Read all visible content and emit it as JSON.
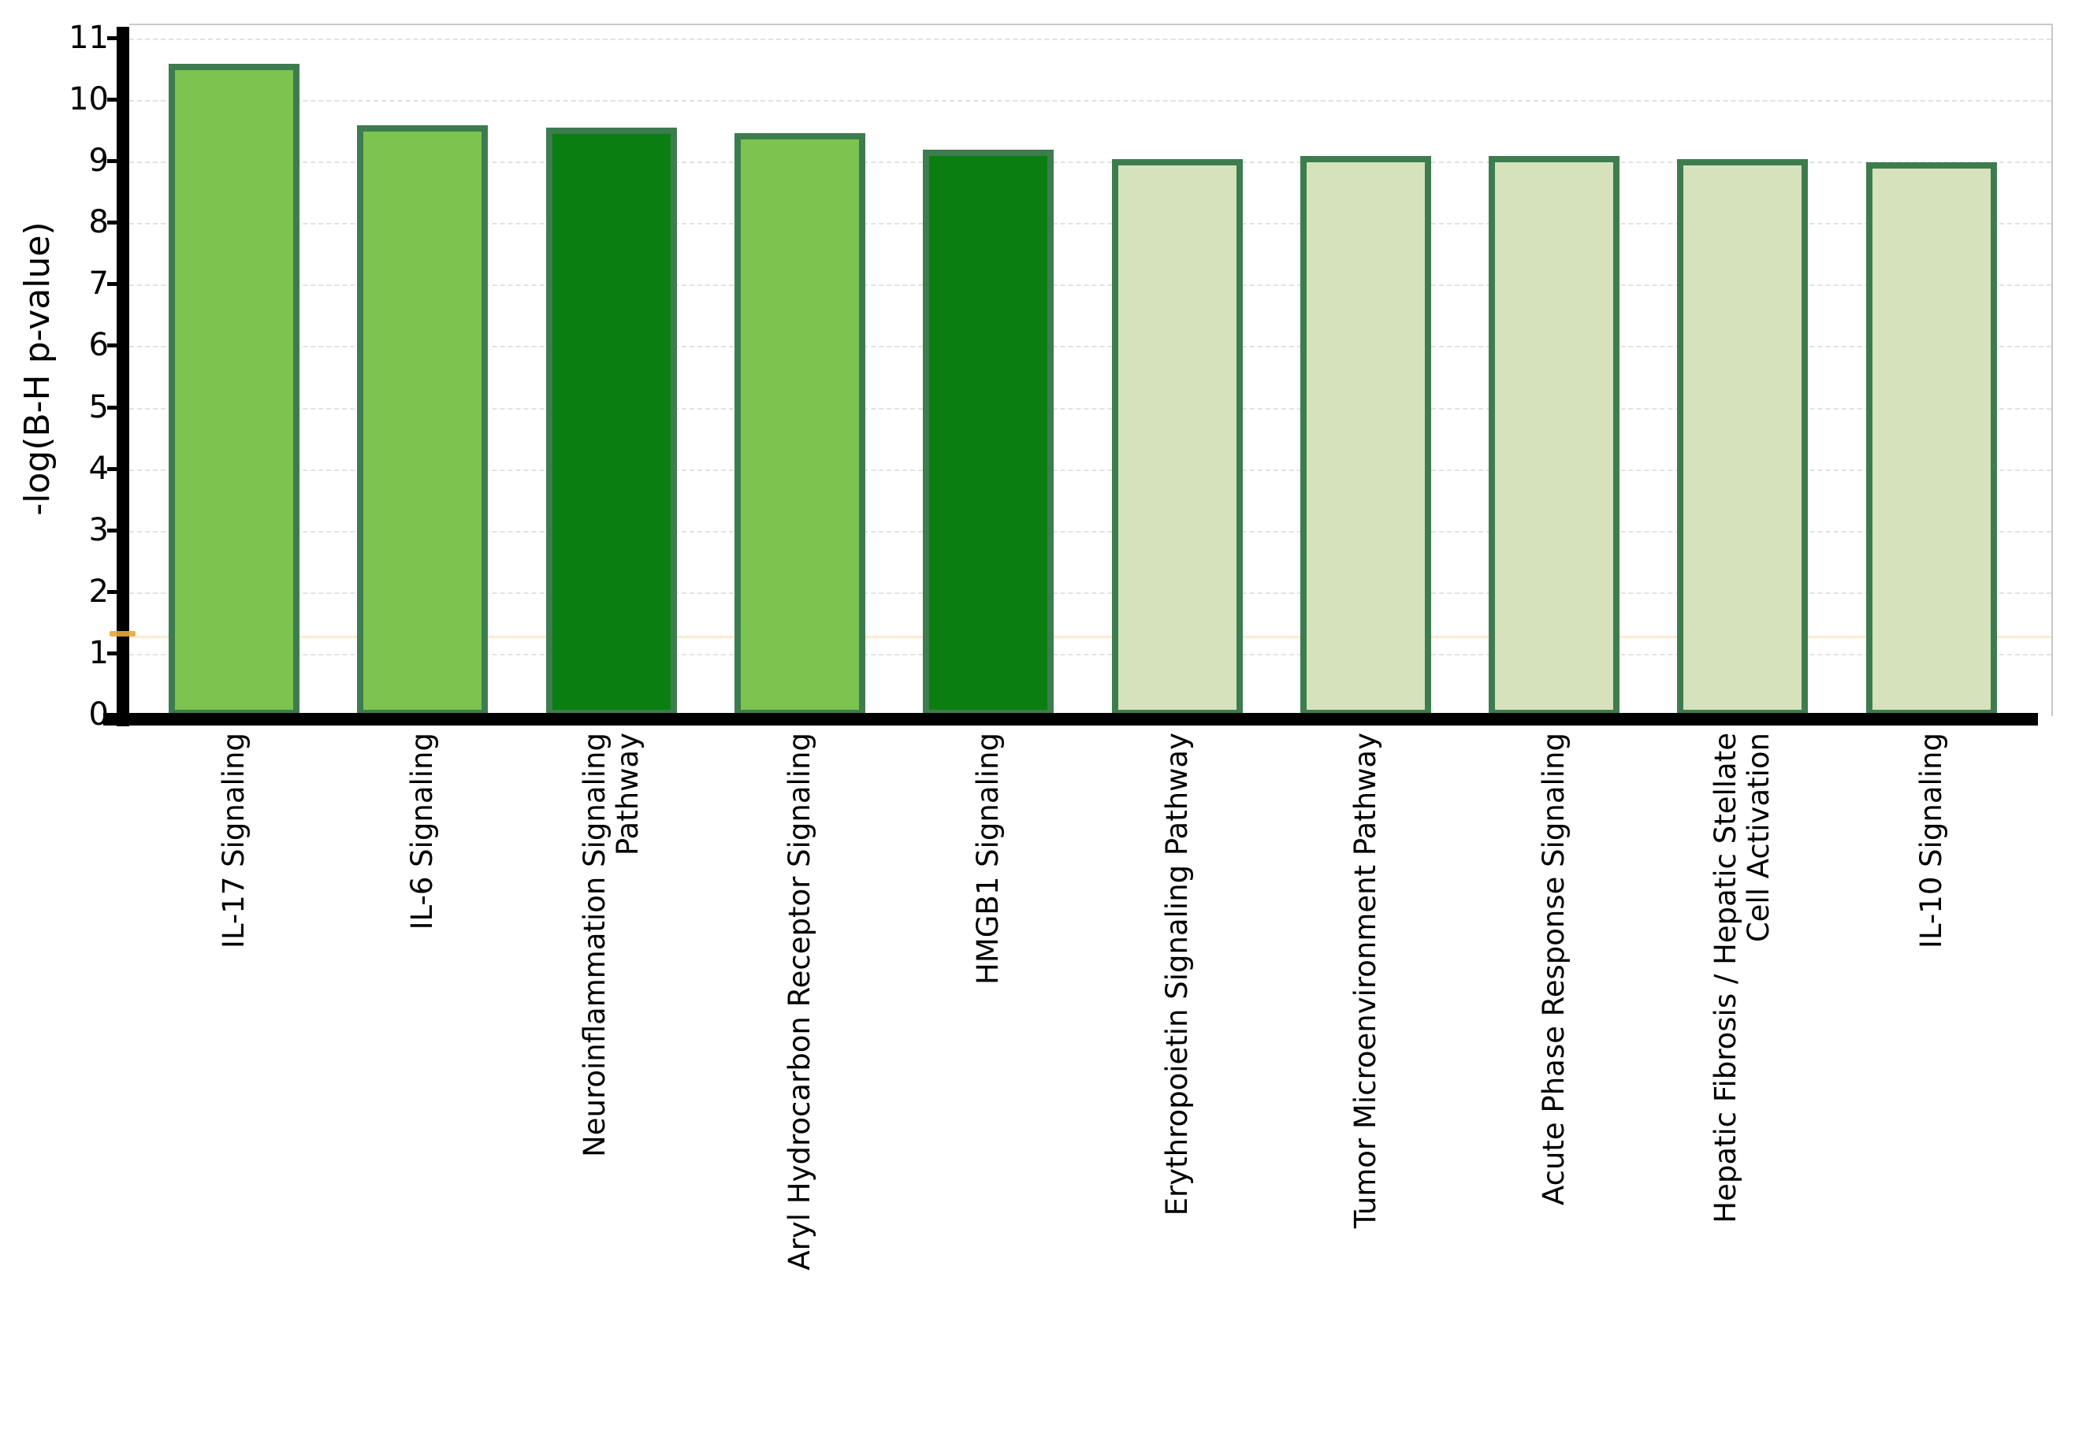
{
  "chart_data": {
    "type": "bar",
    "title": "",
    "ylabel": "-log(B-H p-value)",
    "xlabel": "",
    "categories": [
      "IL-17 Signaling",
      "IL-6 Signaling",
      "Neuroinflammation Signaling Pathway",
      "Aryl Hydrocarbon Receptor Signaling",
      "HMGB1 Signaling",
      "Erythropoietin Signaling Pathway",
      "Tumor Microenvironment Pathway",
      "Acute Phase Response Signaling",
      "Hepatic Fibrosis / Hepatic Stellate Cell Activation",
      "IL-10 Signaling"
    ],
    "label_lines": [
      [
        "IL-17 Signaling"
      ],
      [
        "IL-6 Signaling"
      ],
      [
        "Neuroinflammation Signaling",
        "Pathway"
      ],
      [
        "Aryl Hydrocarbon Receptor Signaling"
      ],
      [
        "HMGB1 Signaling"
      ],
      [
        "Erythropoietin Signaling Pathway"
      ],
      [
        "Tumor Microenvironment Pathway"
      ],
      [
        "Acute Phase Response Signaling"
      ],
      [
        "Hepatic Fibrosis / Hepatic Stellate",
        "Cell Activation"
      ],
      [
        "IL-10 Signaling"
      ]
    ],
    "values": [
      10.6,
      9.6,
      9.57,
      9.47,
      9.2,
      9.05,
      9.1,
      9.1,
      9.05,
      9.0
    ],
    "bar_colors": [
      "#7CC34F",
      "#7CC34F",
      "#0B7E12",
      "#7CC34F",
      "#0B7E12",
      "#D5E2BC",
      "#D5E2BC",
      "#D5E2BC",
      "#D5E2BC",
      "#D5E2BC"
    ],
    "bar_border_color": "#3D7C4E",
    "yticks": [
      0,
      1,
      2,
      3,
      4,
      5,
      6,
      7,
      8,
      9,
      10,
      11
    ],
    "ylim": [
      0,
      11.2
    ],
    "grid": "horizontal-dashed",
    "gridline_color": "#e2e2e2",
    "axis_color": "#000000",
    "plot_border_color": "#c9c9c9",
    "background_color": "#ffffff",
    "legend": null,
    "threshold": {
      "value": 1.3,
      "color": "#e9a63f"
    }
  }
}
